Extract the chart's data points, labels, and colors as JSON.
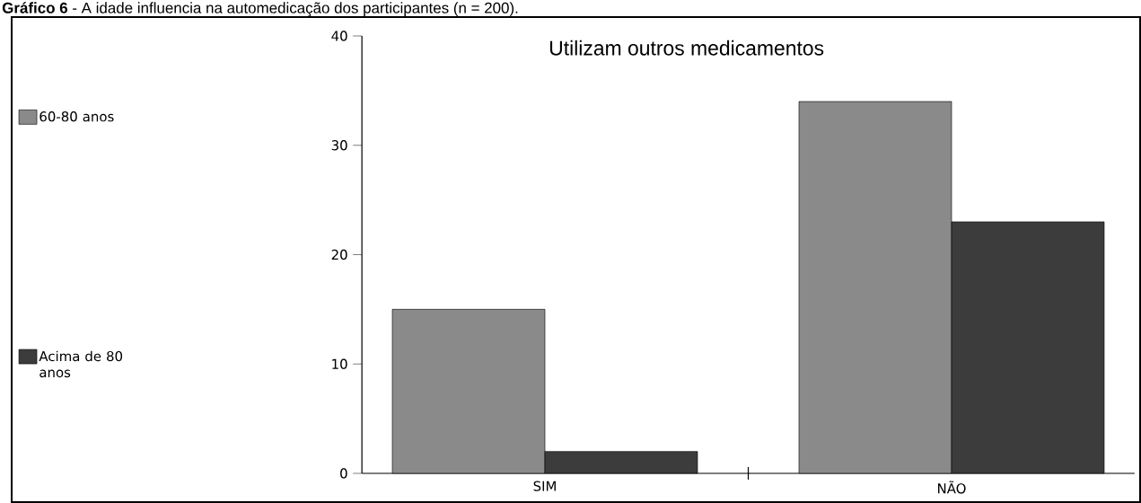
{
  "chart_data": {
    "type": "bar",
    "title": "**Gráfico 6** - A idade influencia na automedicação dos participantes (n = 200).",
    "subtitle": "Utilizam outros medicamentos",
    "categories": [
      "SIM",
      "NÃO"
    ],
    "series": [
      {
        "name": "60-80 anos",
        "color": "#8a8a8a",
        "values": [
          15,
          34
        ]
      },
      {
        "name": "Acima de 80 anos",
        "color": "#3c3c3c",
        "values": [
          2,
          23
        ]
      }
    ],
    "ylim": [
      0,
      40
    ],
    "yticks": [
      0,
      10,
      20,
      30,
      40
    ],
    "grid": false,
    "legend": "left"
  }
}
